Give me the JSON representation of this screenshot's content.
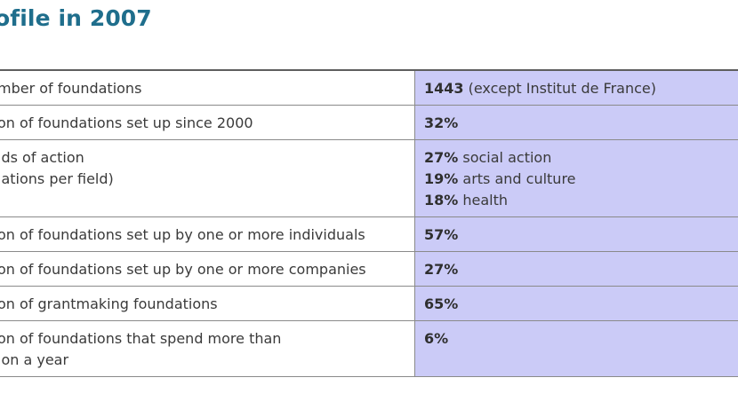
{
  "title": "ofile in 2007",
  "rows": [
    {
      "label_lines": [
        "mber of foundations"
      ],
      "value_lines": [
        {
          "num": "1443",
          "text": " (except Institut de France)"
        }
      ]
    },
    {
      "label_lines": [
        "on of foundations set up since 2000"
      ],
      "value_lines": [
        {
          "num": "32%",
          "text": ""
        }
      ]
    },
    {
      "label_lines": [
        "lds of action",
        "lations per field)"
      ],
      "value_lines": [
        {
          "num": "27%",
          "text": " social action"
        },
        {
          "num": "19%",
          "text": " arts and culture"
        },
        {
          "num": "18%",
          "text": " health"
        }
      ]
    },
    {
      "label_lines": [
        "on of foundations set up by one or more individuals"
      ],
      "value_lines": [
        {
          "num": "57%",
          "text": ""
        }
      ]
    },
    {
      "label_lines": [
        "on of foundations set up by one or more companies"
      ],
      "value_lines": [
        {
          "num": "27%",
          "text": ""
        }
      ]
    },
    {
      "label_lines": [
        "on of grantmaking foundations"
      ],
      "value_lines": [
        {
          "num": "65%",
          "text": ""
        }
      ]
    },
    {
      "label_lines": [
        "on of foundations that spend more than",
        "ion a year"
      ],
      "value_lines": [
        {
          "num": "6%",
          "text": ""
        }
      ]
    }
  ],
  "colors": {
    "title": "#1f6e8c",
    "value_column_bg": "#cbcbf7",
    "rule": "#8a8a8a"
  }
}
